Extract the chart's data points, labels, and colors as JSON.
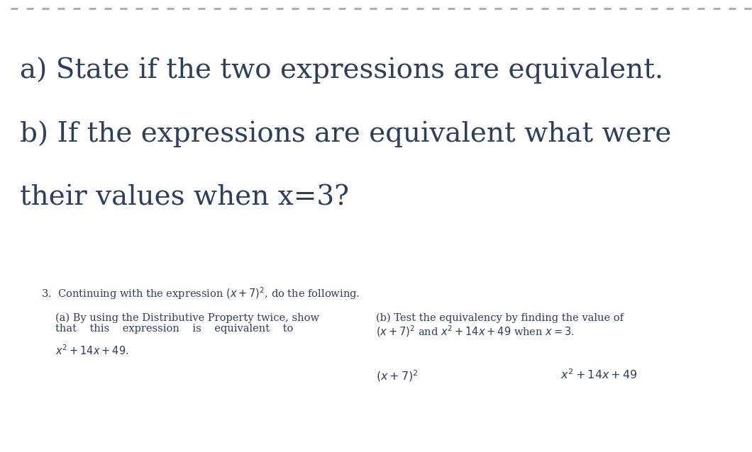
{
  "background_color": "#ffffff",
  "text_color": "#2e3f5c",
  "dashed_line_color": "#aaaaaa",
  "line1_large": "a) State if the two expressions are equivalent.",
  "line2_large": "b) If the expressions are equivalent what were",
  "line3_large": "their values when x=3?",
  "item3_intro_a": "3.  Continuing with the expression ",
  "item3_intro_math": "$(x+7)^2$",
  "item3_intro_b": ", do the following.",
  "col_a_line1": "(a) By using the Distributive Property twice, show",
  "col_a_line2": "that    this    expression    is    equivalent    to",
  "col_a_line3": "$x^2 +14x+49$.",
  "col_b_line1": "(b) Test the equivalency by finding the value of",
  "col_b_line2_a": "$(x+7)^2$",
  "col_b_line2_b": " and ",
  "col_b_line2_c": "$x^2 +14x+49$",
  "col_b_line2_d": " when ",
  "col_b_line2_e": "$x=3$.",
  "bottom_left": "$(x+7)^2$",
  "bottom_right": "$x^2 +14x+49$",
  "large_fontsize": 28,
  "medium_fontsize": 10.5,
  "figsize": [
    10.6,
    6.38
  ],
  "dpi": 100
}
